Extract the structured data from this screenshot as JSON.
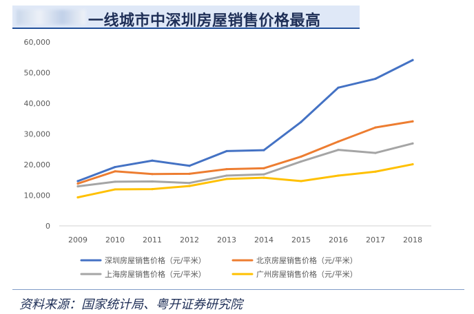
{
  "title": "一线城市中深圳房屋销售价格最高",
  "source": "资料来源：国家统计局、粤开证券研究院",
  "chart_data": {
    "type": "line",
    "categories": [
      "2009",
      "2010",
      "2011",
      "2012",
      "2013",
      "2014",
      "2015",
      "2016",
      "2017",
      "2018"
    ],
    "ylim": [
      0,
      60000
    ],
    "yticks": [
      0,
      10000,
      20000,
      30000,
      40000,
      50000,
      60000
    ],
    "ytick_labels": [
      "0",
      "10,000",
      "20,000",
      "30,000",
      "40,000",
      "50,000",
      "60,000"
    ],
    "grid": false,
    "legend_position": "bottom",
    "series": [
      {
        "name": "深圳房屋销售价格（元/平米）",
        "color": "#4472c4",
        "values": [
          14600,
          19200,
          21300,
          19600,
          24400,
          24700,
          33900,
          45100,
          48000,
          54100
        ]
      },
      {
        "name": "北京房屋销售价格（元/平米）",
        "color": "#ed7d31",
        "values": [
          13800,
          17800,
          16900,
          17000,
          18500,
          18800,
          22600,
          27500,
          32100,
          34100
        ]
      },
      {
        "name": "上海房屋销售价格（元/平米）",
        "color": "#a5a5a5",
        "values": [
          12900,
          14400,
          14500,
          14000,
          16400,
          16800,
          21000,
          24800,
          23800,
          26900
        ]
      },
      {
        "name": "广州房屋销售价格（元/平米）",
        "color": "#ffc000",
        "values": [
          9300,
          11900,
          12000,
          13000,
          15300,
          15700,
          14600,
          16400,
          17700,
          20100
        ]
      }
    ]
  }
}
